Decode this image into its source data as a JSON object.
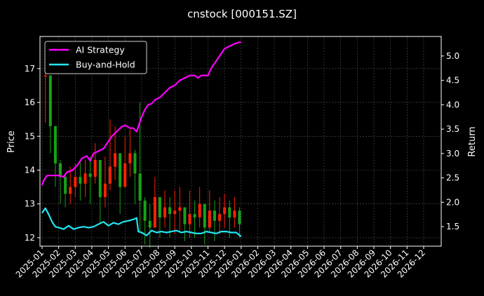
{
  "chart_data": {
    "type": "line",
    "title": "cnstock [000151.SZ]",
    "ylabel_left": "Price",
    "ylabel_right": "Return",
    "ylim_left": [
      11.75,
      17.95
    ],
    "ylim_right": [
      1.1,
      5.4
    ],
    "left_ticks": [
      "12",
      "13",
      "14",
      "15",
      "16",
      "17"
    ],
    "right_ticks": [
      "1.5",
      "2.0",
      "2.5",
      "3.0",
      "3.5",
      "4.0",
      "4.5",
      "5.0"
    ],
    "x_ticks": [
      "2025-01",
      "2025-02",
      "2025-03",
      "2025-04",
      "2025-05",
      "2025-06",
      "2025-07",
      "2025-08",
      "2025-09",
      "2025-10",
      "2025-11",
      "2025-12",
      "2026-01",
      "2026-02",
      "2026-03",
      "2026-04",
      "2026-05",
      "2026-06",
      "2026-07",
      "2026-08",
      "2026-09",
      "2026-10",
      "2026-11",
      "2026-12"
    ],
    "grid": true,
    "legend_placement": "top-left",
    "background": "#000000",
    "series": [
      {
        "name": "AI Strategy",
        "color": "#ff00ff",
        "axis": "right",
        "x": [
          0,
          0.1,
          0.3,
          0.6,
          1.0,
          1.3,
          1.5,
          1.8,
          2.1,
          2.4,
          2.7,
          2.9,
          3.1,
          3.4,
          3.7,
          3.9,
          4.2,
          4.5,
          4.8,
          5.0,
          5.3,
          5.5,
          5.7,
          6.0,
          6.2,
          6.4,
          6.6,
          6.8,
          7.1,
          7.4,
          7.7,
          8.0,
          8.3,
          8.6,
          8.9,
          9.2,
          9.4,
          9.6,
          10.0,
          10.2,
          10.4,
          10.6,
          10.8,
          11.0,
          11.3,
          11.6,
          11.9,
          12.0
        ],
        "values": [
          2.35,
          2.45,
          2.55,
          2.55,
          2.55,
          2.52,
          2.62,
          2.65,
          2.75,
          2.9,
          2.95,
          2.85,
          3.0,
          3.05,
          3.1,
          3.2,
          3.35,
          3.45,
          3.55,
          3.58,
          3.52,
          3.52,
          3.45,
          3.75,
          3.9,
          4.0,
          4.02,
          4.1,
          4.15,
          4.25,
          4.35,
          4.4,
          4.5,
          4.55,
          4.6,
          4.6,
          4.55,
          4.6,
          4.6,
          4.75,
          4.85,
          4.95,
          5.05,
          5.15,
          5.2,
          5.25,
          5.28,
          5.28
        ]
      },
      {
        "name": "Buy-and-Hold",
        "color": "#22e5f2",
        "axis": "right",
        "x": [
          0,
          0.2,
          0.4,
          0.6,
          0.8,
          1.0,
          1.3,
          1.6,
          1.9,
          2.2,
          2.5,
          2.8,
          3.1,
          3.4,
          3.7,
          4.0,
          4.3,
          4.6,
          4.9,
          5.2,
          5.5,
          5.7,
          5.8,
          6.0,
          6.3,
          6.6,
          6.9,
          7.2,
          7.5,
          7.8,
          8.1,
          8.4,
          8.7,
          9.0,
          9.3,
          9.6,
          9.9,
          10.2,
          10.5,
          10.8,
          11.1,
          11.4,
          11.7,
          12.0
        ],
        "values": [
          1.78,
          1.88,
          1.75,
          1.6,
          1.5,
          1.48,
          1.45,
          1.52,
          1.45,
          1.48,
          1.5,
          1.48,
          1.5,
          1.55,
          1.6,
          1.52,
          1.58,
          1.55,
          1.6,
          1.62,
          1.65,
          1.68,
          1.4,
          1.38,
          1.32,
          1.42,
          1.38,
          1.4,
          1.38,
          1.4,
          1.42,
          1.38,
          1.4,
          1.38,
          1.36,
          1.36,
          1.4,
          1.38,
          1.36,
          1.4,
          1.4,
          1.38,
          1.38,
          1.3
        ]
      }
    ],
    "price_candles": {
      "up_color": "#ff2200",
      "down_color": "#17a317",
      "x": [
        0.2,
        0.5,
        0.8,
        1.1,
        1.4,
        1.7,
        2.0,
        2.3,
        2.6,
        2.9,
        3.2,
        3.5,
        3.8,
        4.1,
        4.4,
        4.7,
        5.0,
        5.3,
        5.6,
        5.9,
        6.2,
        6.5,
        6.8,
        7.1,
        7.4,
        7.7,
        8.0,
        8.3,
        8.6,
        8.9,
        9.2,
        9.5,
        9.8,
        10.1,
        10.4,
        10.7,
        11.0,
        11.3,
        11.6,
        11.9
      ],
      "close": [
        16.8,
        15.3,
        14.2,
        13.8,
        13.3,
        13.5,
        13.8,
        13.6,
        13.9,
        13.8,
        14.3,
        13.2,
        13.6,
        14.1,
        14.5,
        13.5,
        14.2,
        14.5,
        13.9,
        13.1,
        12.5,
        12.3,
        13.2,
        12.6,
        12.9,
        12.7,
        12.8,
        12.9,
        12.4,
        12.7,
        12.6,
        13.0,
        12.3,
        12.8,
        12.5,
        12.7,
        12.9,
        12.6,
        12.8,
        12.4
      ],
      "high": [
        17.5,
        16.0,
        14.8,
        14.3,
        13.9,
        14.1,
        14.2,
        14.3,
        14.3,
        14.4,
        14.8,
        13.9,
        14.4,
        15.5,
        15.3,
        14.2,
        15.0,
        15.2,
        14.6,
        16.0,
        13.2,
        13.0,
        13.8,
        13.1,
        13.4,
        13.2,
        13.4,
        13.5,
        12.9,
        13.4,
        13.1,
        13.5,
        12.8,
        13.4,
        13.1,
        13.2,
        13.3,
        13.1,
        13.2,
        12.9
      ],
      "low": [
        15.4,
        14.5,
        13.5,
        13.0,
        12.9,
        13.0,
        13.2,
        13.1,
        13.2,
        13.0,
        13.6,
        12.4,
        12.9,
        13.4,
        13.7,
        12.7,
        13.6,
        13.8,
        13.0,
        12.2,
        11.8,
        11.7,
        12.4,
        12.0,
        12.3,
        12.0,
        12.1,
        12.2,
        11.9,
        12.0,
        12.0,
        12.3,
        11.8,
        12.2,
        11.9,
        12.1,
        12.3,
        12.0,
        12.3,
        12.0
      ]
    }
  }
}
